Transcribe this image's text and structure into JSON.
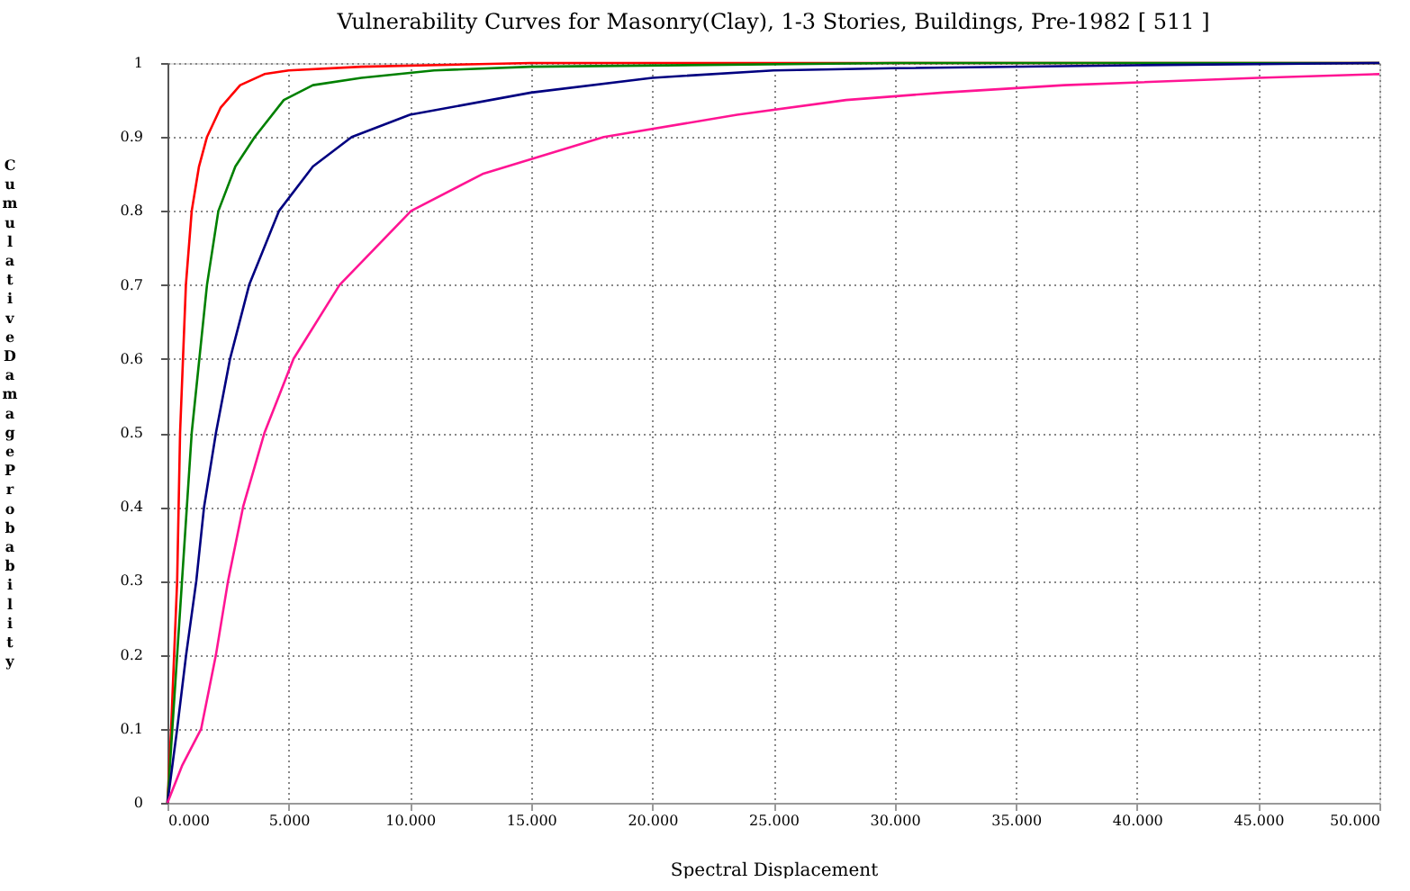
{
  "chart_data": {
    "type": "line",
    "title": "Vulnerability Curves for Masonry(Clay), 1-3 Stories, Buildings, Pre-1982 [ 511 ]",
    "xlabel": "Spectral Displacement",
    "ylabel": "Cumulative Damage Probability",
    "series": [
      {
        "color": "#ff0000",
        "x": [
          0,
          0.15,
          0.4,
          0.52,
          0.76,
          1.0,
          1.3,
          1.63,
          2.2,
          3,
          4,
          5,
          8,
          15,
          50
        ],
        "values": [
          0,
          0.1,
          0.3,
          0.5,
          0.7,
          0.8,
          0.86,
          0.9,
          0.94,
          0.97,
          0.985,
          0.99,
          0.995,
          1,
          1
        ]
      },
      {
        "color": "#008000",
        "x": [
          0,
          0.2,
          0.6,
          1.0,
          1.63,
          2.1,
          2.8,
          3.6,
          4.8,
          6,
          8,
          11,
          15,
          30,
          50
        ],
        "values": [
          0,
          0.1,
          0.3,
          0.5,
          0.7,
          0.8,
          0.86,
          0.9,
          0.95,
          0.97,
          0.98,
          0.99,
          0.995,
          1,
          1
        ]
      },
      {
        "color": "#000080",
        "x": [
          0,
          0.4,
          0.77,
          1.19,
          1.51,
          2.0,
          2.58,
          3.37,
          4.6,
          6,
          7.6,
          10,
          15,
          20,
          25,
          30,
          40,
          50
        ],
        "values": [
          0,
          0.1,
          0.2,
          0.3,
          0.4,
          0.5,
          0.6,
          0.7,
          0.8,
          0.86,
          0.9,
          0.93,
          0.96,
          0.98,
          0.99,
          0.993,
          0.997,
          1
        ]
      },
      {
        "color": "#ff1493",
        "x": [
          0,
          0.6,
          1.39,
          2.0,
          2.5,
          3.12,
          4.0,
          5.2,
          7.1,
          10.05,
          13,
          18,
          23.5,
          28,
          32,
          37,
          45,
          50
        ],
        "values": [
          0,
          0.05,
          0.1,
          0.2,
          0.3,
          0.4,
          0.5,
          0.6,
          0.7,
          0.8,
          0.85,
          0.9,
          0.93,
          0.95,
          0.96,
          0.97,
          0.98,
          0.985
        ]
      }
    ],
    "xlim": [
      0,
      50
    ],
    "ylim": [
      0,
      1
    ],
    "xticks": [
      {
        "value": 0,
        "label": "0.000"
      },
      {
        "value": 5,
        "label": "5.000"
      },
      {
        "value": 10,
        "label": "10.000"
      },
      {
        "value": 15,
        "label": "15.000"
      },
      {
        "value": 20,
        "label": "20.000"
      },
      {
        "value": 25,
        "label": "25.000"
      },
      {
        "value": 30,
        "label": "30.000"
      },
      {
        "value": 35,
        "label": "35.000"
      },
      {
        "value": 40,
        "label": "40.000"
      },
      {
        "value": 45,
        "label": "45.000"
      },
      {
        "value": 50,
        "label": "50.000"
      }
    ],
    "yticks": [
      0,
      0.1,
      0.2,
      0.3,
      0.4,
      0.5,
      0.6,
      0.7,
      0.8,
      0.9,
      1
    ],
    "grid": true,
    "marker": "none",
    "line_style": "solid"
  }
}
